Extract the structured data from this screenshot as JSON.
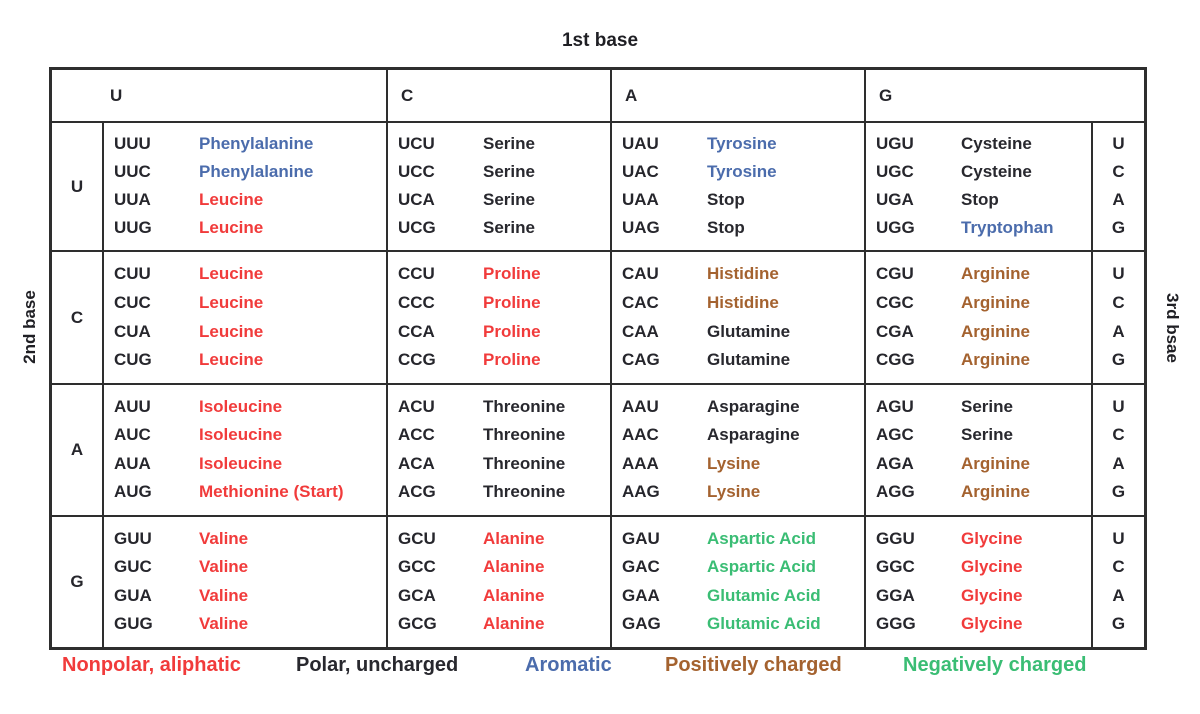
{
  "title": "1st base",
  "axis_labels": {
    "top": "1st base",
    "left": "2nd base",
    "right": "3rd bsae"
  },
  "legend": [
    {
      "label": "Nonpolar, aliphatic",
      "class": "nonpolar",
      "color": "#f13b3b"
    },
    {
      "label": "Polar, uncharged",
      "class": "polar",
      "color": "#28282e"
    },
    {
      "label": "Aromatic",
      "class": "aromatic",
      "color": "#4b6cac"
    },
    {
      "label": "Positively charged",
      "class": "positive",
      "color": "#a4622f"
    },
    {
      "label": "Negatively charged",
      "class": "negative",
      "color": "#3abd74"
    }
  ],
  "colors": {
    "codon_text": "#26262c",
    "border": "#2e2e2e",
    "nonpolar": "#f13b3b",
    "polar": "#28282e",
    "aromatic": "#4b6cac",
    "positive": "#a4622f",
    "negative": "#3abd74"
  },
  "chart_data": {
    "type": "table",
    "title": "1st base",
    "columns": [
      "U",
      "C",
      "A",
      "G"
    ],
    "third_base": [
      "U",
      "C",
      "A",
      "G"
    ],
    "rows": [
      {
        "second_base": "U",
        "cells": [
          {
            "entries": [
              {
                "codon": "UUU",
                "amino": "Phenylalanine",
                "class": "aromatic"
              },
              {
                "codon": "UUC",
                "amino": "Phenylalanine",
                "class": "aromatic"
              },
              {
                "codon": "UUA",
                "amino": "Leucine",
                "class": "nonpolar"
              },
              {
                "codon": "UUG",
                "amino": "Leucine",
                "class": "nonpolar"
              }
            ]
          },
          {
            "entries": [
              {
                "codon": "UCU",
                "amino": "Serine",
                "class": "polar"
              },
              {
                "codon": "UCC",
                "amino": "Serine",
                "class": "polar"
              },
              {
                "codon": "UCA",
                "amino": "Serine",
                "class": "polar"
              },
              {
                "codon": "UCG",
                "amino": "Serine",
                "class": "polar"
              }
            ]
          },
          {
            "entries": [
              {
                "codon": "UAU",
                "amino": "Tyrosine",
                "class": "aromatic"
              },
              {
                "codon": "UAC",
                "amino": "Tyrosine",
                "class": "aromatic"
              },
              {
                "codon": "UAA",
                "amino": "Stop",
                "class": "polar"
              },
              {
                "codon": "UAG",
                "amino": "Stop",
                "class": "polar"
              }
            ]
          },
          {
            "entries": [
              {
                "codon": "UGU",
                "amino": "Cysteine",
                "class": "polar"
              },
              {
                "codon": "UGC",
                "amino": "Cysteine",
                "class": "polar"
              },
              {
                "codon": "UGA",
                "amino": "Stop",
                "class": "polar"
              },
              {
                "codon": "UGG",
                "amino": "Tryptophan",
                "class": "aromatic"
              }
            ]
          }
        ]
      },
      {
        "second_base": "C",
        "cells": [
          {
            "entries": [
              {
                "codon": "CUU",
                "amino": "Leucine",
                "class": "nonpolar"
              },
              {
                "codon": "CUC",
                "amino": "Leucine",
                "class": "nonpolar"
              },
              {
                "codon": "CUA",
                "amino": "Leucine",
                "class": "nonpolar"
              },
              {
                "codon": "CUG",
                "amino": "Leucine",
                "class": "nonpolar"
              }
            ]
          },
          {
            "entries": [
              {
                "codon": "CCU",
                "amino": "Proline",
                "class": "nonpolar"
              },
              {
                "codon": "CCC",
                "amino": "Proline",
                "class": "nonpolar"
              },
              {
                "codon": "CCA",
                "amino": "Proline",
                "class": "nonpolar"
              },
              {
                "codon": "CCG",
                "amino": "Proline",
                "class": "nonpolar"
              }
            ]
          },
          {
            "entries": [
              {
                "codon": "CAU",
                "amino": "Histidine",
                "class": "positive"
              },
              {
                "codon": "CAC",
                "amino": "Histidine",
                "class": "positive"
              },
              {
                "codon": "CAA",
                "amino": "Glutamine",
                "class": "polar"
              },
              {
                "codon": "CAG",
                "amino": "Glutamine",
                "class": "polar"
              }
            ]
          },
          {
            "entries": [
              {
                "codon": "CGU",
                "amino": "Arginine",
                "class": "positive"
              },
              {
                "codon": "CGC",
                "amino": "Arginine",
                "class": "positive"
              },
              {
                "codon": "CGA",
                "amino": "Arginine",
                "class": "positive"
              },
              {
                "codon": "CGG",
                "amino": "Arginine",
                "class": "positive"
              }
            ]
          }
        ]
      },
      {
        "second_base": "A",
        "cells": [
          {
            "entries": [
              {
                "codon": "AUU",
                "amino": "Isoleucine",
                "class": "nonpolar"
              },
              {
                "codon": "AUC",
                "amino": "Isoleucine",
                "class": "nonpolar"
              },
              {
                "codon": "AUA",
                "amino": "Isoleucine",
                "class": "nonpolar"
              },
              {
                "codon": "AUG",
                "amino": "Methionine (Start)",
                "class": "nonpolar"
              }
            ]
          },
          {
            "entries": [
              {
                "codon": "ACU",
                "amino": "Threonine",
                "class": "polar"
              },
              {
                "codon": "ACC",
                "amino": "Threonine",
                "class": "polar"
              },
              {
                "codon": "ACA",
                "amino": "Threonine",
                "class": "polar"
              },
              {
                "codon": "ACG",
                "amino": "Threonine",
                "class": "polar"
              }
            ]
          },
          {
            "entries": [
              {
                "codon": "AAU",
                "amino": "Asparagine",
                "class": "polar"
              },
              {
                "codon": "AAC",
                "amino": "Asparagine",
                "class": "polar"
              },
              {
                "codon": "AAA",
                "amino": "Lysine",
                "class": "positive"
              },
              {
                "codon": "AAG",
                "amino": "Lysine",
                "class": "positive"
              }
            ]
          },
          {
            "entries": [
              {
                "codon": "AGU",
                "amino": "Serine",
                "class": "polar"
              },
              {
                "codon": "AGC",
                "amino": "Serine",
                "class": "polar"
              },
              {
                "codon": "AGA",
                "amino": "Arginine",
                "class": "positive"
              },
              {
                "codon": "AGG",
                "amino": "Arginine",
                "class": "positive"
              }
            ]
          }
        ]
      },
      {
        "second_base": "G",
        "cells": [
          {
            "entries": [
              {
                "codon": "GUU",
                "amino": "Valine",
                "class": "nonpolar"
              },
              {
                "codon": "GUC",
                "amino": "Valine",
                "class": "nonpolar"
              },
              {
                "codon": "GUA",
                "amino": "Valine",
                "class": "nonpolar"
              },
              {
                "codon": "GUG",
                "amino": "Valine",
                "class": "nonpolar"
              }
            ]
          },
          {
            "entries": [
              {
                "codon": "GCU",
                "amino": "Alanine",
                "class": "nonpolar"
              },
              {
                "codon": "GCC",
                "amino": "Alanine",
                "class": "nonpolar"
              },
              {
                "codon": "GCA",
                "amino": "Alanine",
                "class": "nonpolar"
              },
              {
                "codon": "GCG",
                "amino": "Alanine",
                "class": "nonpolar"
              }
            ]
          },
          {
            "entries": [
              {
                "codon": "GAU",
                "amino": "Aspartic Acid",
                "class": "negative"
              },
              {
                "codon": "GAC",
                "amino": "Aspartic Acid",
                "class": "negative"
              },
              {
                "codon": "GAA",
                "amino": "Glutamic Acid",
                "class": "negative"
              },
              {
                "codon": "GAG",
                "amino": "Glutamic Acid",
                "class": "negative"
              }
            ]
          },
          {
            "entries": [
              {
                "codon": "GGU",
                "amino": "Glycine",
                "class": "nonpolar"
              },
              {
                "codon": "GGC",
                "amino": "Glycine",
                "class": "nonpolar"
              },
              {
                "codon": "GGA",
                "amino": "Glycine",
                "class": "nonpolar"
              },
              {
                "codon": "GGG",
                "amino": "Glycine",
                "class": "nonpolar"
              }
            ]
          }
        ]
      }
    ]
  }
}
